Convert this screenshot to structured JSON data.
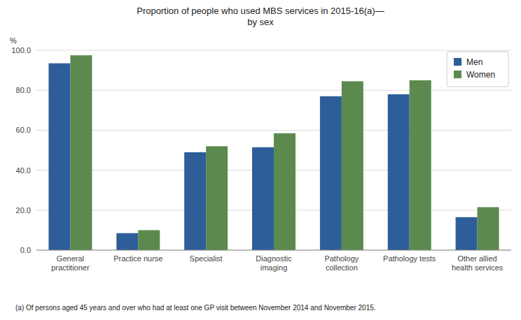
{
  "chart_data": {
    "type": "bar",
    "title": "Proportion of people who used MBS services in 2015-16(a)—\nby sex",
    "y_label": "%",
    "footnote": "(a) Of persons aged 45 years and over who had at least one GP visit between November 2014 and November 2015.",
    "categories": [
      "General\npractitioner",
      "Practice nurse",
      "Specialist",
      "Diagnostic\nimaging",
      "Pathology\ncollection",
      "Pathology tests",
      "Other allied\nhealth services"
    ],
    "series": [
      {
        "name": "Men",
        "color": "#2E5E99",
        "values": [
          93.5,
          8.5,
          49.0,
          51.5,
          77.0,
          78.0,
          16.5
        ]
      },
      {
        "name": "Women",
        "color": "#5C8A4E",
        "values": [
          97.5,
          10.0,
          52.0,
          58.5,
          84.5,
          85.0,
          21.5
        ]
      }
    ],
    "ylim": [
      0,
      100
    ],
    "yticks": [
      {
        "value": 0,
        "label": "0.0"
      },
      {
        "value": 20,
        "label": "20.0"
      },
      {
        "value": 40,
        "label": "40.0"
      },
      {
        "value": 60,
        "label": "60.0"
      },
      {
        "value": 80,
        "label": "80.0"
      },
      {
        "value": 100,
        "label": "100.0"
      }
    ],
    "grid": true,
    "legend": "upper right"
  }
}
